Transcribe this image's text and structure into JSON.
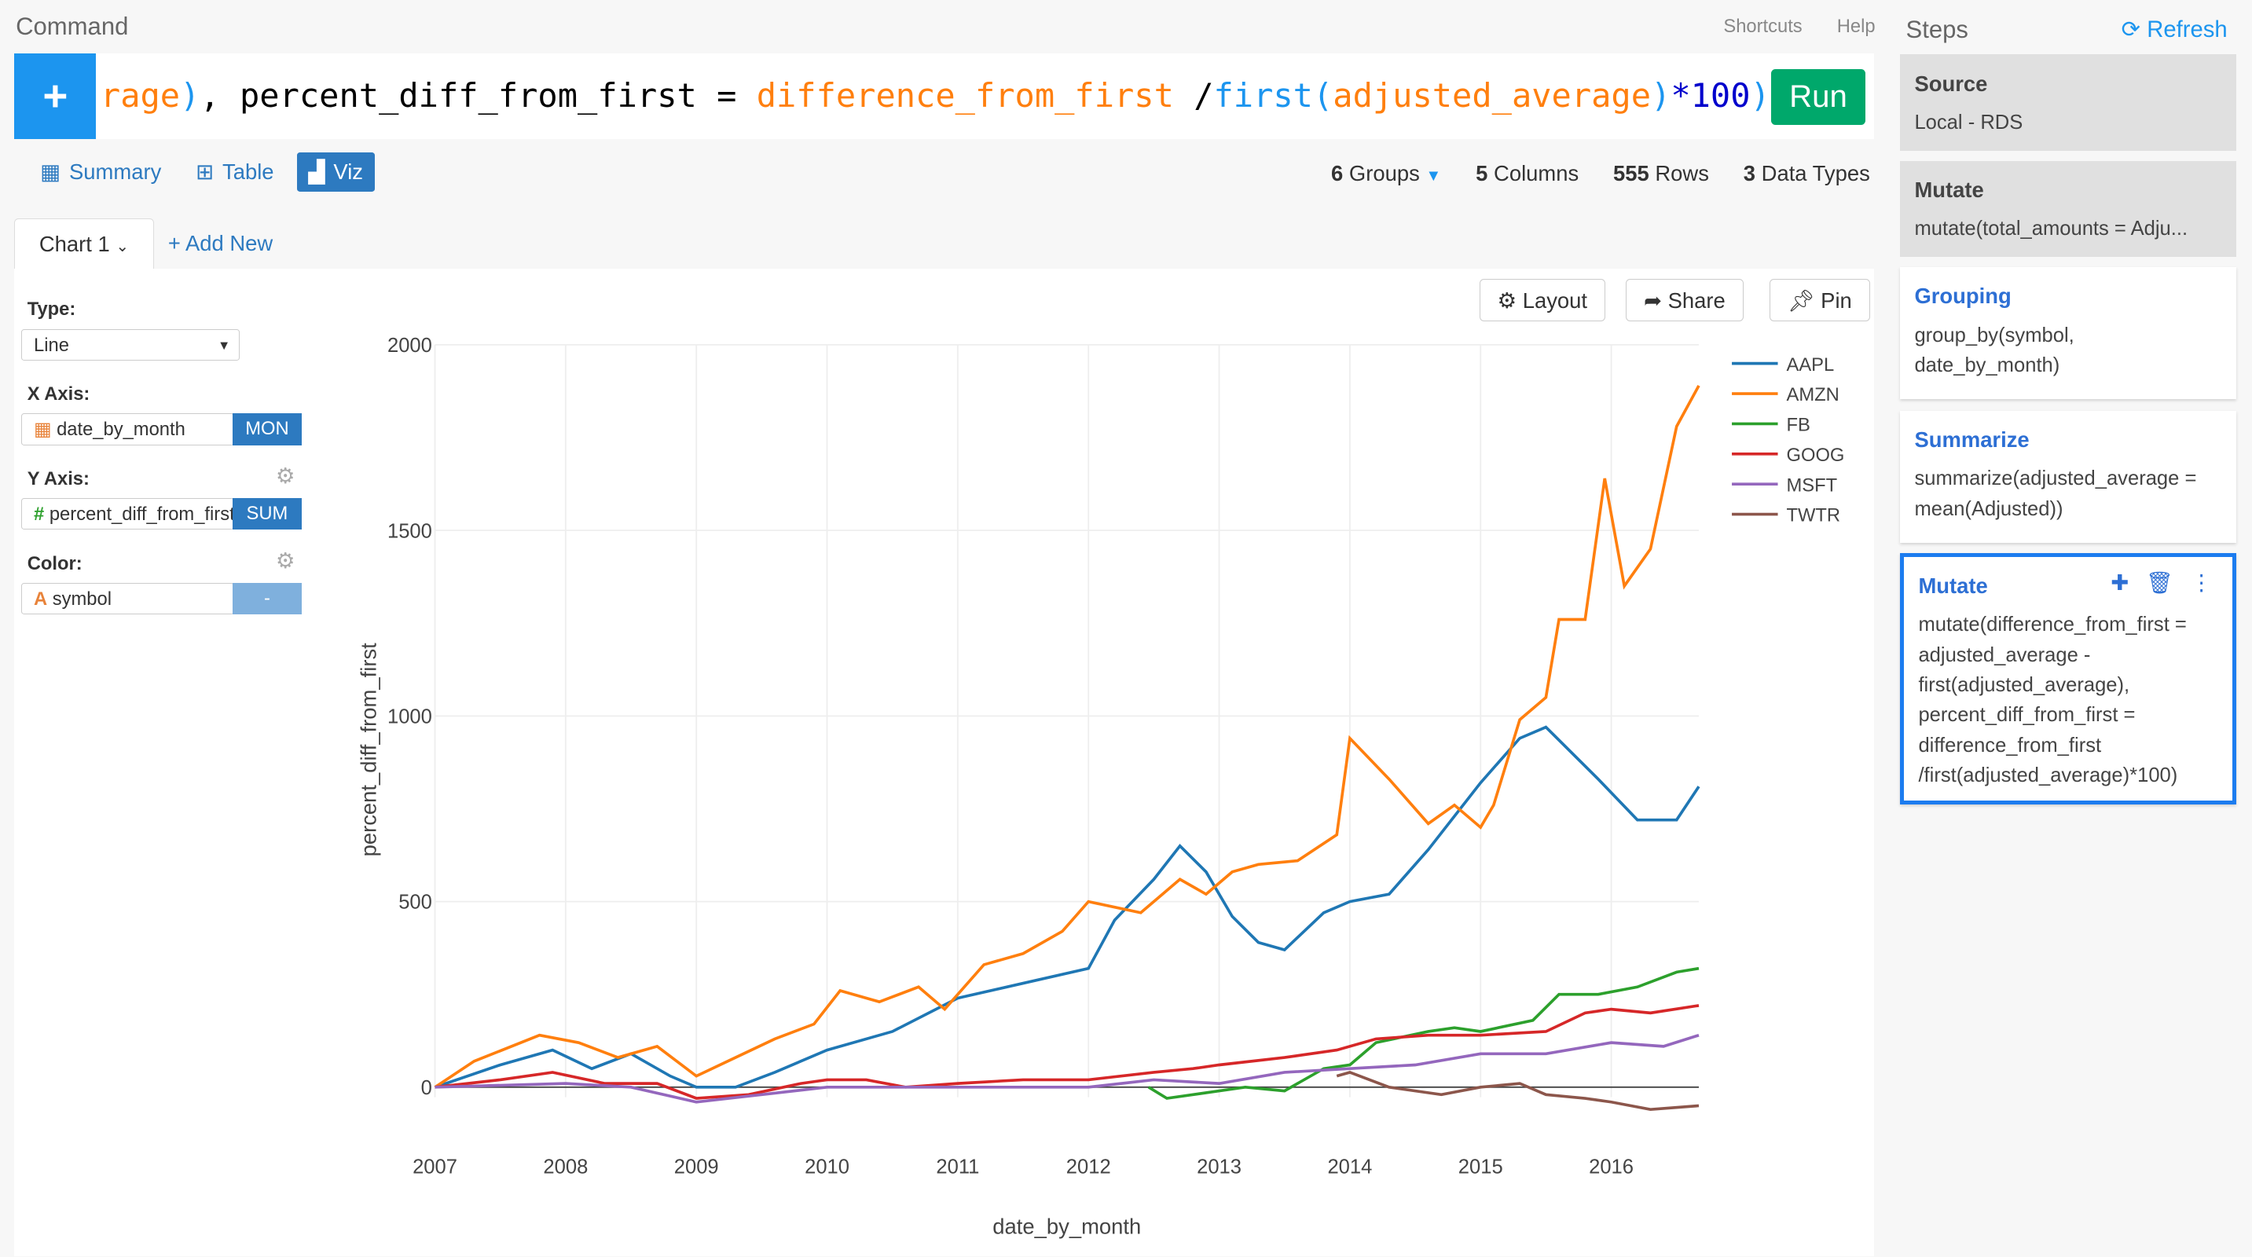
{
  "command": {
    "label": "Command",
    "shortcuts": "Shortcuts",
    "help": "Help",
    "code_parts": [
      "rage",
      ")",
      ", percent_diff_from_first = ",
      "difference_from_first",
      " /",
      "first(",
      "adjusted_average",
      ")",
      "*100",
      ")"
    ],
    "run_label": "Run"
  },
  "view_tabs": [
    {
      "label": "Summary"
    },
    {
      "label": "Table"
    },
    {
      "label": "Viz"
    }
  ],
  "stats": {
    "groups_n": "6",
    "groups": "Groups",
    "columns_n": "5",
    "columns": "Columns",
    "rows_n": "555",
    "rows": "Rows",
    "types_n": "3",
    "types": "Data Types"
  },
  "chart_tab": {
    "label": "Chart 1",
    "add_new": "+ Add New"
  },
  "config": {
    "type_label": "Type:",
    "type_value": "Line",
    "x_label": "X Axis:",
    "x_value": "date_by_month",
    "x_btn": "MON",
    "y_label": "Y Axis:",
    "y_value": "percent_diff_from_first",
    "y_btn": "SUM",
    "color_label": "Color:",
    "color_value": "symbol",
    "color_btn": "-"
  },
  "chart_buttons": {
    "layout": "Layout",
    "share": "Share",
    "pin": "Pin"
  },
  "steps": {
    "title": "Steps",
    "refresh": "Refresh",
    "items": [
      {
        "title": "Source",
        "body": "Local - RDS"
      },
      {
        "title": "Mutate",
        "body": "mutate(total_amounts = Adju..."
      },
      {
        "title": "Grouping",
        "body": "group_by(symbol, date_by_month)"
      },
      {
        "title": "Summarize",
        "body": "summarize(adjusted_average = mean(Adjusted))"
      },
      {
        "title": "Mutate",
        "body": "mutate(difference_from_first = adjusted_average - first(adjusted_average), percent_diff_from_first = difference_from_first /first(adjusted_average)*100)"
      }
    ]
  },
  "chart_data": {
    "type": "line",
    "xlabel": "date_by_month",
    "ylabel": "percent_diff_from_first",
    "xlim": [
      2007,
      2016.67
    ],
    "ylim": [
      -100,
      2000
    ],
    "xticks": [
      2007,
      2008,
      2009,
      2010,
      2011,
      2012,
      2013,
      2014,
      2015,
      2016
    ],
    "yticks": [
      0,
      500,
      1000,
      1500,
      2000
    ],
    "legend_position": "top-right",
    "grid": true,
    "series": [
      {
        "name": "AAPL",
        "color": "#1f77b4",
        "x": [
          2007,
          2007.5,
          2007.9,
          2008.2,
          2008.5,
          2008.8,
          2009.0,
          2009.3,
          2009.6,
          2010,
          2010.5,
          2011,
          2011.5,
          2012,
          2012.2,
          2012.5,
          2012.7,
          2012.9,
          2013.1,
          2013.3,
          2013.5,
          2013.8,
          2014,
          2014.3,
          2014.6,
          2015,
          2015.3,
          2015.5,
          2015.9,
          2016.2,
          2016.5,
          2016.67
        ],
        "y": [
          0,
          60,
          100,
          50,
          90,
          30,
          0,
          0,
          40,
          100,
          150,
          240,
          280,
          320,
          450,
          560,
          650,
          580,
          460,
          390,
          370,
          470,
          500,
          520,
          640,
          820,
          940,
          970,
          830,
          720,
          720,
          810
        ]
      },
      {
        "name": "AMZN",
        "color": "#ff7f0e",
        "x": [
          2007,
          2007.3,
          2007.8,
          2008.1,
          2008.4,
          2008.7,
          2009,
          2009.3,
          2009.6,
          2009.9,
          2010.1,
          2010.4,
          2010.7,
          2010.9,
          2011.2,
          2011.5,
          2011.8,
          2012,
          2012.4,
          2012.7,
          2012.9,
          2013.1,
          2013.3,
          2013.6,
          2013.9,
          2014,
          2014.3,
          2014.6,
          2014.8,
          2015,
          2015.1,
          2015.3,
          2015.5,
          2015.6,
          2015.8,
          2015.95,
          2016.1,
          2016.3,
          2016.5,
          2016.67
        ],
        "y": [
          0,
          70,
          140,
          120,
          80,
          110,
          30,
          80,
          130,
          170,
          260,
          230,
          270,
          210,
          330,
          360,
          420,
          500,
          470,
          560,
          520,
          580,
          600,
          610,
          680,
          940,
          830,
          710,
          760,
          700,
          760,
          990,
          1050,
          1260,
          1260,
          1640,
          1350,
          1450,
          1780,
          1890
        ]
      },
      {
        "name": "FB",
        "color": "#2ca02c",
        "x": [
          2012.46,
          2012.6,
          2012.8,
          2013,
          2013.2,
          2013.5,
          2013.8,
          2014,
          2014.2,
          2014.6,
          2014.8,
          2015,
          2015.4,
          2015.6,
          2015.9,
          2016.2,
          2016.5,
          2016.67
        ],
        "y": [
          0,
          -30,
          -20,
          -10,
          0,
          -10,
          50,
          60,
          120,
          150,
          160,
          150,
          180,
          250,
          250,
          270,
          310,
          320
        ]
      },
      {
        "name": "GOOG",
        "color": "#d62728",
        "x": [
          2007,
          2007.5,
          2007.9,
          2008.3,
          2008.7,
          2009,
          2009.4,
          2009.8,
          2010,
          2010.3,
          2010.6,
          2011,
          2011.5,
          2012,
          2012.5,
          2012.8,
          2013,
          2013.5,
          2013.9,
          2014.2,
          2014.6,
          2015,
          2015.5,
          2015.8,
          2016,
          2016.3,
          2016.67
        ],
        "y": [
          0,
          20,
          40,
          10,
          10,
          -30,
          -20,
          10,
          20,
          20,
          0,
          10,
          20,
          20,
          40,
          50,
          60,
          80,
          100,
          130,
          140,
          140,
          150,
          200,
          210,
          200,
          220
        ]
      },
      {
        "name": "MSFT",
        "color": "#9467bd",
        "x": [
          2007,
          2008,
          2008.5,
          2009,
          2009.5,
          2010,
          2011,
          2012,
          2012.5,
          2013,
          2013.5,
          2014,
          2014.5,
          2015,
          2015.5,
          2016,
          2016.4,
          2016.67
        ],
        "y": [
          0,
          10,
          0,
          -40,
          -20,
          0,
          0,
          0,
          20,
          10,
          40,
          50,
          60,
          90,
          90,
          120,
          110,
          140
        ]
      },
      {
        "name": "TWTR",
        "color": "#8c564b",
        "x": [
          2013.9,
          2014.0,
          2014.3,
          2014.7,
          2015,
          2015.3,
          2015.5,
          2015.8,
          2016,
          2016.3,
          2016.67
        ],
        "y": [
          30,
          40,
          0,
          -20,
          0,
          10,
          -20,
          -30,
          -40,
          -60,
          -50
        ]
      }
    ]
  }
}
